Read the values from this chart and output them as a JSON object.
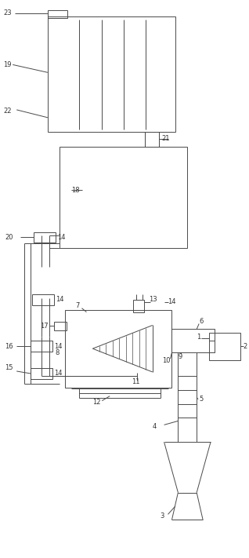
{
  "fig_width": 3.18,
  "fig_height": 7.11,
  "dpi": 100,
  "bg_color": "#ffffff",
  "line_color": "#4a4a4a",
  "lw": 0.7
}
